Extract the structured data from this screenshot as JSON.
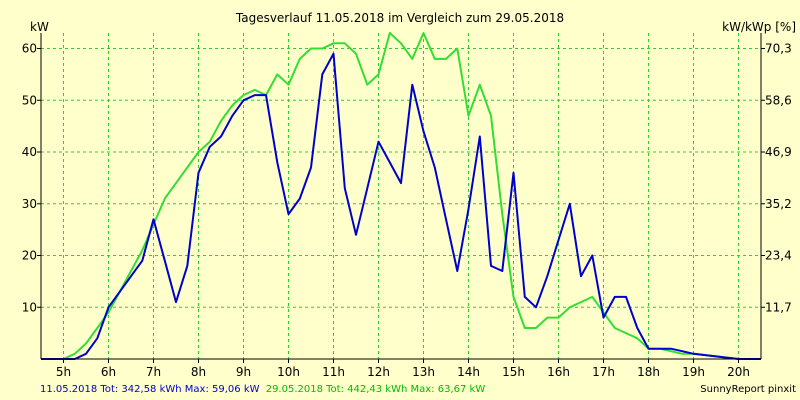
{
  "chart_data": {
    "type": "line",
    "title": "Tagesverlauf 11.05.2018 im Vergleich zum 29.05.2018",
    "ylabel_left": "kW",
    "ylabel_right": "kW/kWp [%]",
    "x_tick_labels": [
      "5h",
      "6h",
      "7h",
      "8h",
      "9h",
      "10h",
      "11h",
      "12h",
      "13h",
      "14h",
      "15h",
      "16h",
      "17h",
      "18h",
      "19h",
      "20h"
    ],
    "xlim": [
      4.5,
      20.5
    ],
    "ylim": [
      0,
      60
    ],
    "y_ticks_left": [
      10,
      20,
      30,
      40,
      50,
      60
    ],
    "y_ticks_right": [
      "11,7",
      "23,4",
      "35,2",
      "46,9",
      "58,6",
      "70,3"
    ],
    "grid": true,
    "colors": {
      "background": "#ffffcc",
      "plot_area": "#ffffcc",
      "grid": "#33cc33",
      "blue": "#0000cc",
      "green": "#33dd33"
    },
    "series": [
      {
        "name": "11.05.2018",
        "color": "#0000cc",
        "points": [
          [
            4.5,
            0
          ],
          [
            5,
            0
          ],
          [
            5.25,
            0
          ],
          [
            5.5,
            1
          ],
          [
            5.75,
            4
          ],
          [
            6,
            10
          ],
          [
            6.25,
            13
          ],
          [
            6.5,
            16
          ],
          [
            6.75,
            19
          ],
          [
            7,
            27
          ],
          [
            7.25,
            19
          ],
          [
            7.5,
            11
          ],
          [
            7.75,
            18
          ],
          [
            8,
            36
          ],
          [
            8.25,
            41
          ],
          [
            8.5,
            43
          ],
          [
            8.75,
            47
          ],
          [
            9,
            50
          ],
          [
            9.25,
            51
          ],
          [
            9.5,
            51
          ],
          [
            9.75,
            38
          ],
          [
            10,
            28
          ],
          [
            10.25,
            31
          ],
          [
            10.5,
            37
          ],
          [
            10.75,
            55
          ],
          [
            11,
            59
          ],
          [
            11.25,
            33
          ],
          [
            11.5,
            24
          ],
          [
            11.75,
            33
          ],
          [
            12,
            42
          ],
          [
            12.25,
            38
          ],
          [
            12.5,
            34
          ],
          [
            12.75,
            53
          ],
          [
            13,
            44
          ],
          [
            13.25,
            37
          ],
          [
            13.5,
            27
          ],
          [
            13.75,
            17
          ],
          [
            14,
            29
          ],
          [
            14.25,
            43
          ],
          [
            14.5,
            18
          ],
          [
            14.75,
            17
          ],
          [
            15,
            36
          ],
          [
            15.25,
            12
          ],
          [
            15.5,
            10
          ],
          [
            15.75,
            16
          ],
          [
            16,
            23
          ],
          [
            16.25,
            30
          ],
          [
            16.5,
            16
          ],
          [
            16.75,
            20
          ],
          [
            17,
            8
          ],
          [
            17.25,
            12
          ],
          [
            17.5,
            12
          ],
          [
            17.75,
            6
          ],
          [
            18,
            2
          ],
          [
            18.25,
            2
          ],
          [
            18.5,
            2
          ],
          [
            18.75,
            1.5
          ],
          [
            19,
            1
          ],
          [
            19.5,
            0.5
          ],
          [
            20,
            0
          ],
          [
            20.5,
            0
          ]
        ]
      },
      {
        "name": "29.05.2018",
        "color": "#33dd33",
        "points": [
          [
            4.5,
            0
          ],
          [
            5,
            0
          ],
          [
            5.25,
            1
          ],
          [
            5.5,
            3
          ],
          [
            5.75,
            6
          ],
          [
            6,
            9
          ],
          [
            6.25,
            13
          ],
          [
            6.5,
            17
          ],
          [
            6.75,
            21
          ],
          [
            7,
            26
          ],
          [
            7.25,
            31
          ],
          [
            7.5,
            34
          ],
          [
            7.75,
            37
          ],
          [
            8,
            40
          ],
          [
            8.25,
            42
          ],
          [
            8.5,
            46
          ],
          [
            8.75,
            49
          ],
          [
            9,
            51
          ],
          [
            9.25,
            52
          ],
          [
            9.5,
            51
          ],
          [
            9.75,
            55
          ],
          [
            10,
            53
          ],
          [
            10.25,
            58
          ],
          [
            10.5,
            60
          ],
          [
            10.75,
            60
          ],
          [
            11,
            61
          ],
          [
            11.25,
            61
          ],
          [
            11.5,
            59
          ],
          [
            11.75,
            53
          ],
          [
            12,
            55
          ],
          [
            12.25,
            63
          ],
          [
            12.5,
            61
          ],
          [
            12.75,
            58
          ],
          [
            13,
            63
          ],
          [
            13.25,
            58
          ],
          [
            13.5,
            58
          ],
          [
            13.75,
            60
          ],
          [
            14,
            47
          ],
          [
            14.25,
            53
          ],
          [
            14.5,
            47
          ],
          [
            14.75,
            28
          ],
          [
            15,
            12
          ],
          [
            15.25,
            6
          ],
          [
            15.5,
            6
          ],
          [
            15.75,
            8
          ],
          [
            16,
            8
          ],
          [
            16.25,
            10
          ],
          [
            16.5,
            11
          ],
          [
            16.75,
            12
          ],
          [
            17,
            9
          ],
          [
            17.25,
            6
          ],
          [
            17.5,
            5
          ],
          [
            17.75,
            4
          ],
          [
            18,
            2
          ],
          [
            18.25,
            2
          ],
          [
            18.5,
            1.5
          ],
          [
            18.75,
            1
          ],
          [
            19,
            1
          ],
          [
            19.5,
            0.5
          ],
          [
            20,
            0
          ],
          [
            20.5,
            0
          ]
        ]
      }
    ]
  },
  "footer": {
    "summary_1": "11.05.2018 Tot: 342,58 kWh Max: 59,06 kW",
    "summary_2": "29.05.2018 Tot: 442,43 kWh Max: 63,67 kW",
    "credit": "SunnyReport pinxit"
  }
}
